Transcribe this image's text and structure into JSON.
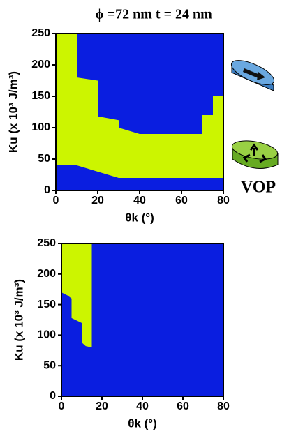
{
  "chart_data": [
    {
      "type": "phase",
      "title": "ϕ =72 nm t = 24 nm",
      "xlabel": "θk (°)",
      "ylabel": "Ku (x 10³ J/m³)",
      "xlim": [
        0,
        80
      ],
      "ylim": [
        0,
        250
      ],
      "xticks": [
        0,
        20,
        40,
        60,
        80
      ],
      "yticks": [
        0,
        50,
        100,
        150,
        200,
        250
      ],
      "series": [
        {
          "color": "#0a1ee0",
          "x": [
            0,
            0,
            80,
            80
          ],
          "values": [
            0,
            250,
            250,
            0
          ]
        },
        {
          "name": "VOP",
          "color": "#ccf500",
          "x": [
            0,
            0,
            10,
            10,
            20,
            20,
            30,
            30,
            40,
            70,
            70,
            75,
            75,
            80,
            80,
            30,
            10
          ],
          "values": [
            40,
            250,
            250,
            180,
            175,
            118,
            112,
            100,
            90,
            90,
            120,
            120,
            150,
            150,
            20,
            20,
            40
          ]
        }
      ]
    },
    {
      "type": "phase",
      "xlabel": "θk (°)",
      "ylabel": "Ku (x 10³ J/m³)",
      "xlim": [
        0,
        80
      ],
      "ylim": [
        0,
        250
      ],
      "xticks": [
        0,
        20,
        40,
        60,
        80
      ],
      "yticks": [
        0,
        50,
        100,
        150,
        200,
        250
      ],
      "series": [
        {
          "color": "#0a1ee0",
          "x": [
            0,
            0,
            80,
            80
          ],
          "values": [
            0,
            250,
            250,
            0
          ]
        },
        {
          "color": "#ccf500",
          "x": [
            0,
            15,
            15,
            12,
            10,
            10,
            5,
            5,
            3,
            0
          ],
          "values": [
            250,
            250,
            80,
            82,
            88,
            120,
            128,
            160,
            165,
            170
          ]
        }
      ]
    }
  ]
}
